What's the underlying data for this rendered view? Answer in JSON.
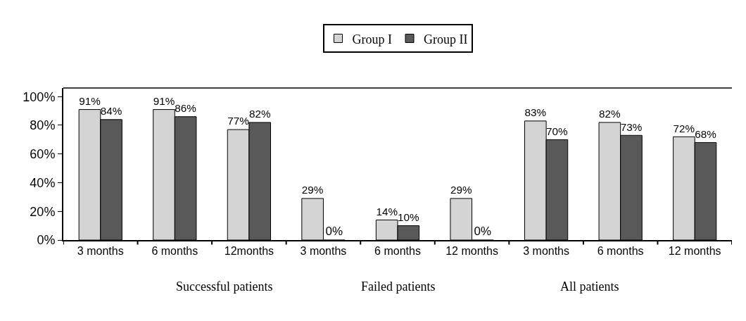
{
  "chart_data": {
    "type": "bar",
    "categories": [
      "3 months",
      "6 months",
      "12months",
      "3 months",
      "6 months",
      "12 months",
      "3 months",
      "6 months",
      "12 months"
    ],
    "series": [
      {
        "name": "Group I",
        "color": "#d4d4d4",
        "values": [
          91,
          91,
          77,
          29,
          14,
          29,
          83,
          82,
          72
        ],
        "value_labels": [
          "91%",
          "91%",
          "77%",
          "29%",
          "14%",
          "29%",
          "83%",
          "82%",
          "72%"
        ]
      },
      {
        "name": "Group II",
        "color": "#595959",
        "values": [
          84,
          86,
          82,
          0,
          10,
          0,
          70,
          73,
          68
        ],
        "value_labels": [
          "84%",
          "86%",
          "82%",
          "0%",
          "10%",
          "0%",
          "70%",
          "73%",
          "68%"
        ]
      }
    ],
    "ylim": [
      0,
      106
    ],
    "yticks": [
      {
        "value": 0,
        "label": "0%"
      },
      {
        "value": 20,
        "label": "20%"
      },
      {
        "value": 40,
        "label": "40%"
      },
      {
        "value": 60,
        "label": "60%"
      },
      {
        "value": 80,
        "label": "80%"
      },
      {
        "value": 100,
        "label": "100%"
      }
    ],
    "legend": "top",
    "annotations": [
      "Successful patients",
      "Failed patients",
      "All patients"
    ]
  }
}
